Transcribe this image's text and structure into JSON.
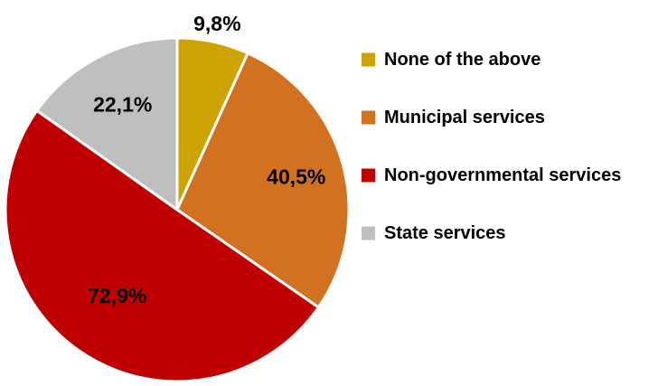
{
  "chart_data": {
    "type": "pie",
    "title": "",
    "slices": [
      {
        "label": "None of the above",
        "value": 9.8,
        "display": "9,8%",
        "color": "#cca300"
      },
      {
        "label": "Municipal services",
        "value": 40.5,
        "display": "40,5%",
        "color": "#d2711f"
      },
      {
        "label": "Non-governmental services",
        "value": 72.9,
        "display": "72,9%",
        "color": "#c00000"
      },
      {
        "label": "State services",
        "value": 22.1,
        "display": "22,1%",
        "color": "#bfbfbf"
      }
    ],
    "legend_position": "right",
    "start_angle": "12 o'clock",
    "direction": "clockwise"
  }
}
